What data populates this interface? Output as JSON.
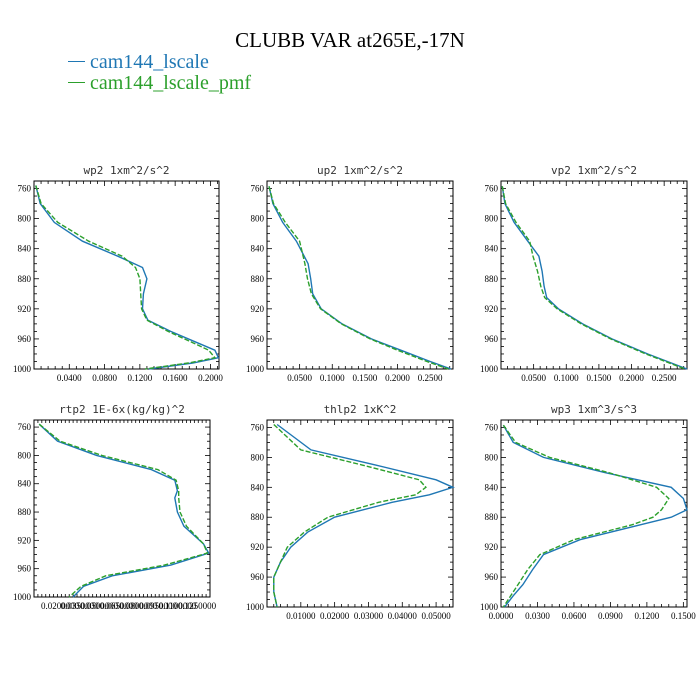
{
  "title": "CLUBB VAR at265E,-17N",
  "legend": [
    {
      "label": "cam144_lscale",
      "color": "#1f77b4"
    },
    {
      "label": "cam144_lscale_pmf",
      "color": "#2ca02c"
    }
  ],
  "chart_data": [
    {
      "type": "line",
      "title": "wp2  1xm^2/s^2",
      "xlim": [
        0.0,
        0.2097
      ],
      "ylim": [
        750,
        1000
      ],
      "y_inverted": true,
      "xticks": [
        0.04,
        0.08,
        0.12,
        0.16,
        0.2
      ],
      "xtick_labels": [
        "0.0400",
        "0.0800",
        "0.1200",
        "0.1600",
        "0.2000"
      ],
      "yticks": [
        760,
        800,
        840,
        880,
        920,
        960,
        1000
      ],
      "y": [
        756,
        780,
        805,
        830,
        850,
        865,
        880,
        900,
        920,
        935,
        950,
        965,
        975,
        985,
        992,
        1000
      ],
      "series": [
        {
          "name": "cam144_lscale",
          "values": [
            0.002,
            0.007,
            0.023,
            0.055,
            0.095,
            0.123,
            0.128,
            0.124,
            0.123,
            0.129,
            0.155,
            0.185,
            0.205,
            0.209,
            0.18,
            0.13
          ]
        },
        {
          "name": "cam144_lscale_pmf",
          "values": [
            0.002,
            0.008,
            0.027,
            0.062,
            0.1,
            0.115,
            0.12,
            0.121,
            0.122,
            0.128,
            0.152,
            0.18,
            0.198,
            0.205,
            0.175,
            0.126
          ]
        }
      ]
    },
    {
      "type": "line",
      "title": "up2  1xm^2/s^2",
      "xlim": [
        0.0,
        0.285
      ],
      "ylim": [
        750,
        1000
      ],
      "y_inverted": true,
      "xticks": [
        0.05,
        0.1,
        0.15,
        0.2,
        0.25
      ],
      "xtick_labels": [
        "0.0500",
        "0.1000",
        "0.1500",
        "0.2000",
        "0.2500"
      ],
      "yticks": [
        760,
        800,
        840,
        880,
        920,
        960,
        1000
      ],
      "y": [
        757,
        780,
        805,
        830,
        860,
        880,
        900,
        920,
        940,
        960,
        975,
        990,
        1000
      ],
      "series": [
        {
          "name": "cam144_lscale",
          "values": [
            0.003,
            0.009,
            0.024,
            0.045,
            0.063,
            0.067,
            0.07,
            0.083,
            0.115,
            0.16,
            0.205,
            0.25,
            0.282
          ]
        },
        {
          "name": "cam144_lscale_pmf",
          "values": [
            0.003,
            0.01,
            0.028,
            0.05,
            0.058,
            0.062,
            0.068,
            0.082,
            0.114,
            0.158,
            0.2,
            0.245,
            0.278
          ]
        }
      ]
    },
    {
      "type": "line",
      "title": "vp2  1xm^2/s^2",
      "xlim": [
        0.0,
        0.285
      ],
      "ylim": [
        750,
        1000
      ],
      "y_inverted": true,
      "xticks": [
        0.05,
        0.1,
        0.15,
        0.2,
        0.25
      ],
      "xtick_labels": [
        "0.0500",
        "0.1000",
        "0.1500",
        "0.2000",
        "0.2500"
      ],
      "yticks": [
        760,
        800,
        840,
        880,
        920,
        960,
        1000
      ],
      "y": [
        757,
        780,
        805,
        830,
        850,
        870,
        890,
        905,
        920,
        940,
        960,
        980,
        1000
      ],
      "series": [
        {
          "name": "cam144_lscale",
          "values": [
            0.002,
            0.006,
            0.02,
            0.041,
            0.058,
            0.063,
            0.066,
            0.07,
            0.088,
            0.125,
            0.17,
            0.225,
            0.285
          ]
        },
        {
          "name": "cam144_lscale_pmf",
          "values": [
            0.002,
            0.007,
            0.023,
            0.044,
            0.049,
            0.056,
            0.061,
            0.067,
            0.086,
            0.123,
            0.168,
            0.222,
            0.282
          ]
        }
      ]
    },
    {
      "type": "line",
      "title": "rtp2  1E-6x(kg/kg)^2",
      "xlim": [
        0.0,
        0.135
      ],
      "ylim": [
        750,
        1000
      ],
      "y_inverted": true,
      "xticks": [
        0.02,
        0.035,
        0.05,
        0.065,
        0.08,
        0.095,
        0.11,
        0.125
      ],
      "xtick_labels": [
        "0.0200000",
        "0.0350000",
        "0.0500000",
        "0.0650000",
        "0.0800000",
        "0.0950000",
        "0.1100000",
        "0.1250000"
      ],
      "yticks": [
        760,
        800,
        840,
        880,
        920,
        960,
        1000
      ],
      "y": [
        756,
        780,
        800,
        820,
        835,
        850,
        860,
        880,
        900,
        925,
        938,
        955,
        970,
        985,
        1000
      ],
      "series": [
        {
          "name": "cam144_lscale",
          "values": [
            0.004,
            0.018,
            0.048,
            0.09,
            0.108,
            0.11,
            0.108,
            0.11,
            0.115,
            0.13,
            0.134,
            0.105,
            0.06,
            0.038,
            0.03
          ]
        },
        {
          "name": "cam144_lscale_pmf",
          "values": [
            0.004,
            0.02,
            0.052,
            0.095,
            0.109,
            0.111,
            0.111,
            0.112,
            0.117,
            0.13,
            0.133,
            0.1,
            0.055,
            0.036,
            0.027
          ]
        }
      ]
    },
    {
      "type": "line",
      "title": "thlp2  1xK^2",
      "xlim": [
        0.0,
        0.055
      ],
      "ylim": [
        750,
        1000
      ],
      "y_inverted": true,
      "xticks": [
        0.01,
        0.02,
        0.03,
        0.04,
        0.05
      ],
      "xtick_labels": [
        "0.01000",
        "0.02000",
        "0.03000",
        "0.04000",
        "0.05000"
      ],
      "yticks": [
        760,
        800,
        840,
        880,
        920,
        960,
        1000
      ],
      "y": [
        756,
        790,
        810,
        830,
        840,
        850,
        860,
        880,
        900,
        920,
        940,
        960,
        980,
        1000
      ],
      "series": [
        {
          "name": "cam144_lscale",
          "values": [
            0.003,
            0.013,
            0.032,
            0.05,
            0.055,
            0.048,
            0.037,
            0.02,
            0.012,
            0.007,
            0.004,
            0.002,
            0.002,
            0.003
          ]
        },
        {
          "name": "cam144_lscale_pmf",
          "values": [
            0.002,
            0.01,
            0.028,
            0.045,
            0.047,
            0.044,
            0.033,
            0.018,
            0.011,
            0.006,
            0.004,
            0.002,
            0.002,
            0.003
          ]
        }
      ]
    },
    {
      "type": "line",
      "title": "wp3  1xm^3/s^3",
      "xlim": [
        0.0,
        0.153
      ],
      "ylim": [
        750,
        1000
      ],
      "y_inverted": true,
      "xticks": [
        0.0,
        0.03,
        0.06,
        0.09,
        0.12,
        0.15
      ],
      "xtick_labels": [
        "0.0000",
        "0.0300",
        "0.0600",
        "0.0900",
        "0.1200",
        "0.1500"
      ],
      "yticks": [
        760,
        800,
        840,
        880,
        920,
        960,
        1000
      ],
      "y": [
        757,
        780,
        800,
        820,
        840,
        855,
        870,
        880,
        890,
        910,
        930,
        950,
        970,
        985,
        1000
      ],
      "series": [
        {
          "name": "cam144_lscale",
          "values": [
            0.002,
            0.01,
            0.035,
            0.085,
            0.14,
            0.15,
            0.153,
            0.14,
            0.115,
            0.065,
            0.035,
            0.026,
            0.018,
            0.01,
            0.003
          ]
        },
        {
          "name": "cam144_lscale_pmf",
          "values": [
            0.002,
            0.012,
            0.04,
            0.088,
            0.128,
            0.138,
            0.132,
            0.125,
            0.108,
            0.06,
            0.032,
            0.022,
            0.014,
            0.008,
            0.002
          ]
        }
      ]
    }
  ]
}
